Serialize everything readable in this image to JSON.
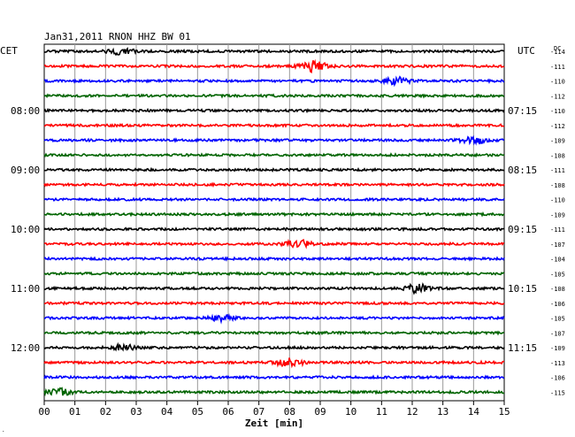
{
  "chart_data": {
    "type": "line",
    "title": "Jan31,2011   RNON HHZ BW 01",
    "left_label": "CET",
    "right_label": "UTC",
    "dc_label": "DC",
    "xlabel": "Zeit [min]",
    "xlim": [
      0,
      15
    ],
    "x_ticks": [
      "00",
      "01",
      "02",
      "03",
      "04",
      "05",
      "06",
      "07",
      "08",
      "09",
      "10",
      "11",
      "12",
      "13",
      "14",
      "15"
    ],
    "grid": "vertical",
    "line_colors": [
      "#000000",
      "#ff0000",
      "#0000ff",
      "#006400"
    ],
    "rows": 24,
    "left_times": [
      {
        "row": 4,
        "label": "08:00"
      },
      {
        "row": 8,
        "label": "09:00"
      },
      {
        "row": 12,
        "label": "10:00"
      },
      {
        "row": 16,
        "label": "11:00"
      },
      {
        "row": 20,
        "label": "12:00"
      }
    ],
    "right_times": [
      {
        "row": 4,
        "label": "07:15"
      },
      {
        "row": 8,
        "label": "08:15"
      },
      {
        "row": 12,
        "label": "09:15"
      },
      {
        "row": 16,
        "label": "10:15"
      },
      {
        "row": 20,
        "label": "11:15"
      }
    ],
    "dc_values": [
      "-114",
      "-111",
      "-110",
      "-112",
      "-110",
      "-112",
      "-109",
      "-108",
      "-111",
      "-108",
      "-110",
      "-109",
      "-111",
      "-107",
      "-104",
      "-105",
      "-108",
      "-106",
      "-105",
      "-107",
      "-109",
      "-113",
      "-106",
      "-115"
    ],
    "events": [
      {
        "row": 0,
        "minute": 2.5,
        "amp": 1.6
      },
      {
        "row": 1,
        "minute": 8.8,
        "amp": 3.2
      },
      {
        "row": 2,
        "minute": 11.5,
        "amp": 1.8
      },
      {
        "row": 6,
        "minute": 14.0,
        "amp": 2.2
      },
      {
        "row": 13,
        "minute": 8.3,
        "amp": 2.0
      },
      {
        "row": 16,
        "minute": 12.2,
        "amp": 2.4
      },
      {
        "row": 18,
        "minute": 5.8,
        "amp": 1.6
      },
      {
        "row": 20,
        "minute": 2.6,
        "amp": 1.6
      },
      {
        "row": 21,
        "minute": 8.0,
        "amp": 2.2
      },
      {
        "row": 23,
        "minute": 0.5,
        "amp": 2.0
      }
    ]
  }
}
